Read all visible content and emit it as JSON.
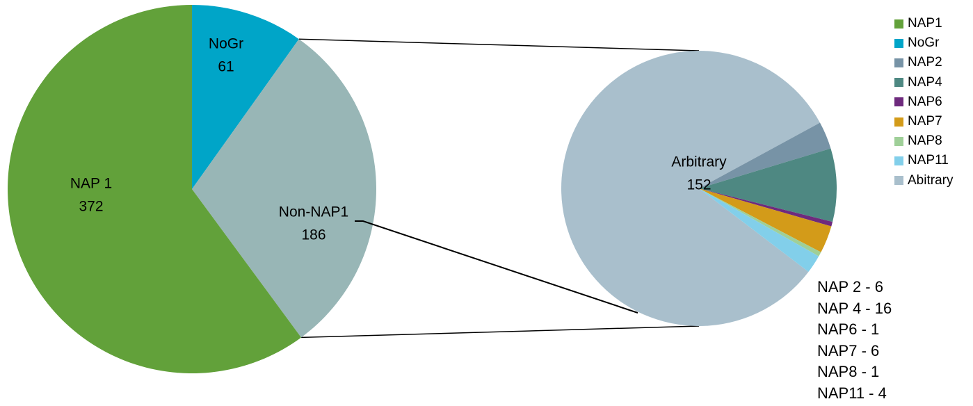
{
  "chart_data": {
    "type": "pie",
    "variant": "pie-of-pie",
    "main_pie": {
      "slices": [
        {
          "key": "nogr",
          "value": 61,
          "label_name": "NoGr",
          "label_value": "61",
          "color": "#00A5C8"
        },
        {
          "key": "non_nap1",
          "value": 186,
          "label_name": "Non-NAP1",
          "label_value": "186",
          "color": "#98B6B6"
        },
        {
          "key": "nap1",
          "value": 372,
          "label_name": "NAP 1",
          "label_value": "372",
          "color": "#62A13A"
        }
      ]
    },
    "secondary_pie": {
      "slices": [
        {
          "key": "arbitrary",
          "value": 152,
          "label_name": "Arbitrary",
          "label_value": "152",
          "color": "#A9BFCC"
        },
        {
          "key": "nap2",
          "value": 6,
          "color": "#7793A6"
        },
        {
          "key": "nap4",
          "value": 16,
          "color": "#4E8882"
        },
        {
          "key": "nap6",
          "value": 1,
          "color": "#6E2A7D"
        },
        {
          "key": "nap7",
          "value": 6,
          "color": "#D39B19"
        },
        {
          "key": "nap8",
          "value": 1,
          "color": "#9FCF98"
        },
        {
          "key": "nap11",
          "value": 4,
          "color": "#82CFEA"
        }
      ]
    },
    "legend": {
      "position": "top-right",
      "entries": [
        {
          "label": "NAP1",
          "color": "#62A13A"
        },
        {
          "label": "NoGr",
          "color": "#00A5C8"
        },
        {
          "label": "NAP2",
          "color": "#7793A6"
        },
        {
          "label": "NAP4",
          "color": "#4E8882"
        },
        {
          "label": "NAP6",
          "color": "#6E2A7D"
        },
        {
          "label": "NAP7",
          "color": "#D39B19"
        },
        {
          "label": "NAP8",
          "color": "#9FCF98"
        },
        {
          "label": "NAP11",
          "color": "#82CFEA"
        },
        {
          "label": "Abitrary",
          "color": "#A9BFCC"
        }
      ]
    },
    "annotation_lines": [
      "NAP 2 - 6",
      "NAP 4 - 16",
      "NAP6 - 1",
      "NAP7 - 6",
      "NAP8 - 1",
      "NAP11 - 4"
    ]
  }
}
